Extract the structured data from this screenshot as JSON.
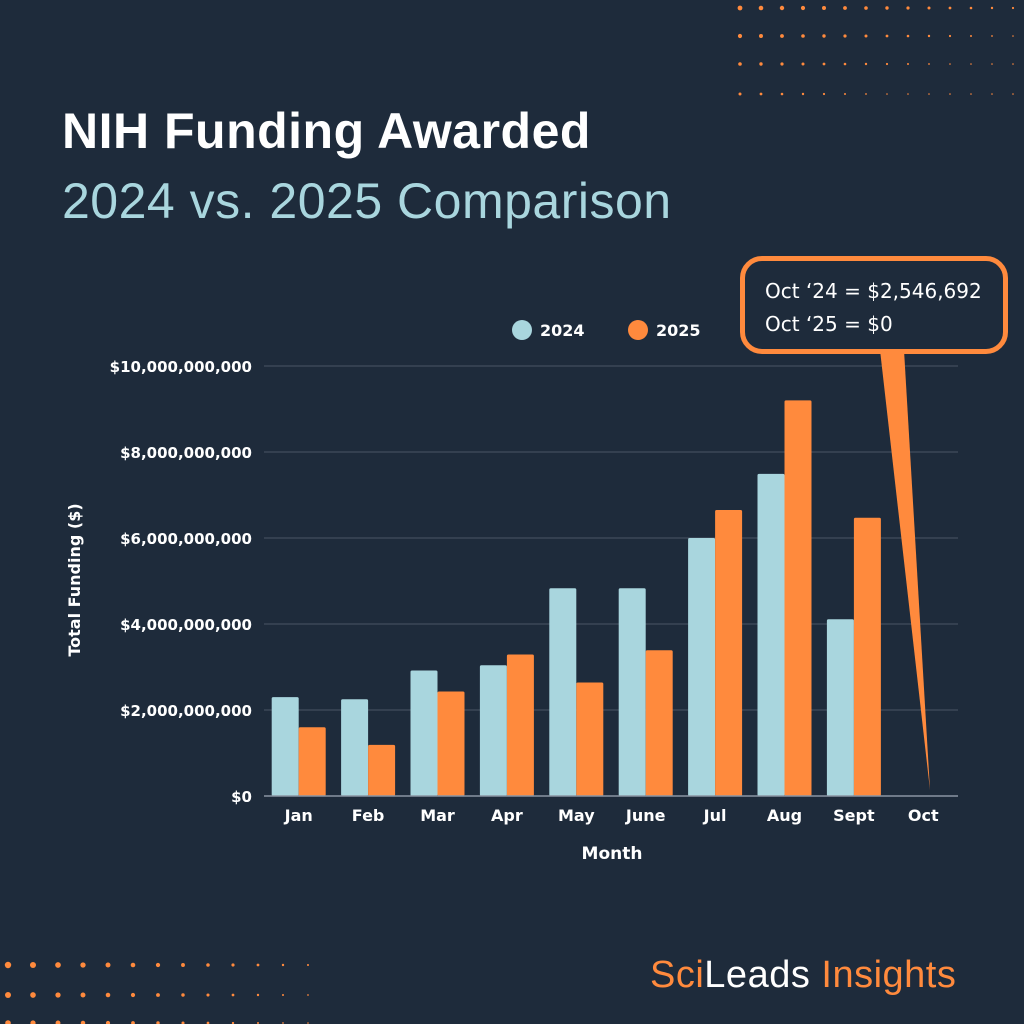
{
  "title": {
    "line1": "NIH Funding Awarded",
    "line2": "2024 vs. 2025 Comparison"
  },
  "brand": {
    "part1": "Sci",
    "part2": "Leads",
    "part3": " Insights"
  },
  "callout": {
    "line1": "Oct ‘24 = $2,546,692",
    "line2": "Oct ‘25 = $0"
  },
  "colors": {
    "background": "#1e2b3b",
    "series_2024": "#a9d6de",
    "series_2025": "#ff8a3d",
    "grid": "#4a5665"
  },
  "chart_data": {
    "type": "bar",
    "xlabel": "Month",
    "ylabel": "Total Funding ($)",
    "ylim": [
      0,
      10000000000
    ],
    "yticks": [
      0,
      2000000000,
      4000000000,
      6000000000,
      8000000000,
      10000000000
    ],
    "ytick_labels": [
      "$0",
      "$2,000,000,000",
      "$4,000,000,000",
      "$6,000,000,000",
      "$8,000,000,000",
      "$10,000,000,000"
    ],
    "categories": [
      "Jan",
      "Feb",
      "Mar",
      "Apr",
      "May",
      "June",
      "Jul",
      "Aug",
      "Sept",
      "Oct"
    ],
    "series": [
      {
        "name": "2024",
        "color": "#a9d6de",
        "values": [
          2300000000,
          2250000000,
          2920000000,
          3040000000,
          4830000000,
          4830000000,
          6000000000,
          7490000000,
          4110000000,
          2546692
        ]
      },
      {
        "name": "2025",
        "color": "#ff8a3d",
        "values": [
          1600000000,
          1190000000,
          2430000000,
          3290000000,
          2640000000,
          3390000000,
          6650000000,
          9200000000,
          6470000000,
          0
        ]
      }
    ],
    "legend": "top-center"
  }
}
